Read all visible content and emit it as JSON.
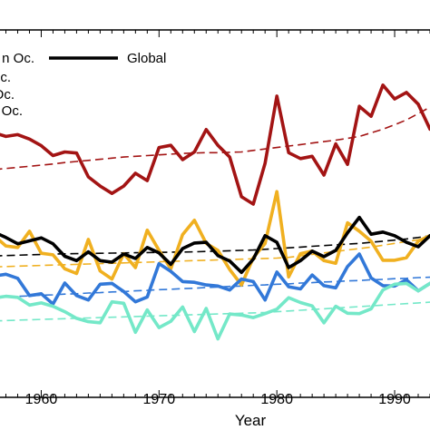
{
  "chart_data": {
    "type": "line",
    "xlabel": "Year",
    "ylabel": "",
    "xlim": [
      1956.5,
      1993.0
    ],
    "ylim": [
      0,
      100
    ],
    "x_ticks": [
      1960,
      1970,
      1980,
      1990
    ],
    "grid": false,
    "legend_position": "top-left",
    "x": [
      1956,
      1957,
      1958,
      1959,
      1960,
      1961,
      1962,
      1963,
      1964,
      1965,
      1966,
      1967,
      1968,
      1969,
      1970,
      1971,
      1972,
      1973,
      1974,
      1975,
      1976,
      1977,
      1978,
      1979,
      1980,
      1981,
      1982,
      1983,
      1984,
      1985,
      1986,
      1987,
      1988,
      1989,
      1990,
      1991,
      1992,
      1993
    ],
    "series": [
      {
        "name": "... Ocean Oc.",
        "color": "#a31414",
        "values": [
          72,
          71,
          71.5,
          70.3,
          68.5,
          65.8,
          66.8,
          66.5,
          60,
          57.5,
          55.5,
          57.5,
          61,
          59,
          68,
          68.6,
          64.7,
          66.8,
          72.9,
          68.6,
          65.4,
          54.6,
          52.6,
          63.7,
          82,
          66.6,
          65,
          65.6,
          60.5,
          69,
          63.4,
          79.2,
          76.5,
          85,
          81.2,
          83,
          79.8,
          73
        ]
      },
      {
        "name": "... Oc.",
        "color": "#f0b020",
        "values": [
          44,
          41.2,
          40.8,
          45.2,
          39.2,
          38.8,
          35,
          33.7,
          43,
          34.4,
          32.2,
          39.1,
          35.3,
          45.5,
          40,
          35,
          44.3,
          48.2,
          41.9,
          40,
          34.8,
          30.6,
          38,
          41.9,
          56,
          32.8,
          39.1,
          39.8,
          37.2,
          36.5,
          47.5,
          45.2,
          42.5,
          37.3,
          37.3,
          38,
          42.5,
          44
        ]
      },
      {
        "name": "... Oc.",
        "color": "#3278d8",
        "values": [
          33,
          33.5,
          32.4,
          27.7,
          28.2,
          25.4,
          31.1,
          27.7,
          26.5,
          30.8,
          31,
          28.8,
          26,
          27.3,
          36.4,
          34.3,
          31.5,
          31.3,
          30.6,
          30.3,
          29.2,
          32.2,
          31.5,
          26.5,
          34.1,
          30.1,
          29.5,
          33.3,
          30.4,
          29.8,
          35.6,
          39,
          32.5,
          30.4,
          30.3,
          32,
          29,
          31
        ]
      },
      {
        "name": "Global",
        "color": "#000000",
        "values": [
          45,
          43.5,
          41.8,
          42.6,
          43.4,
          41.8,
          38.4,
          37.2,
          39.6,
          37.2,
          36.8,
          39,
          37.8,
          40.8,
          39.3,
          36.2,
          40.5,
          42,
          42.2,
          38.6,
          37.1,
          34,
          37.6,
          44,
          42.2,
          35.3,
          37.2,
          39.8,
          38.3,
          40,
          44.8,
          49,
          44.4,
          45,
          44,
          42.2,
          41,
          44
        ]
      },
      {
        "name": "... Oc.",
        "color": "#74e8c8",
        "values": [
          27,
          27.5,
          27.2,
          25.1,
          25.7,
          24.8,
          23.3,
          21.5,
          20.6,
          20.3,
          26,
          25.6,
          17.7,
          23.8,
          19,
          20.7,
          24.6,
          17.9,
          24.2,
          15.9,
          22.7,
          22.4,
          21.7,
          22.8,
          24,
          27.1,
          25.8,
          24.9,
          20.3,
          24.8,
          22.9,
          22.8,
          24.1,
          29.2,
          30.8,
          31,
          29,
          31
        ]
      }
    ],
    "trend_series": [
      {
        "color": "#a31414",
        "values": [
          62,
          62.3,
          62.6,
          62.9,
          63.2,
          63.5,
          63.9,
          64.2,
          64.5,
          64.8,
          65.1,
          65.4,
          65.6,
          65.8,
          66,
          66.2,
          66.4,
          66.5,
          66.6,
          66.6,
          66.7,
          66.8,
          67.2,
          67.6,
          68,
          68.4,
          68.8,
          69.2,
          69.6,
          70,
          70.5,
          71,
          72,
          73,
          74.2,
          75.5,
          77.2,
          79
        ]
      },
      {
        "color": "#f0b020",
        "values": [
          35.5,
          35.6,
          35.7,
          35.8,
          35.9,
          36,
          36.1,
          36.2,
          36.3,
          36.4,
          36.5,
          36.6,
          36.7,
          36.8,
          36.9,
          37,
          37.1,
          37.2,
          37.3,
          37.4,
          37.5,
          37.6,
          37.7,
          37.8,
          37.9,
          38.1,
          38.5,
          38.9,
          39.3,
          39.7,
          40.1,
          40.5,
          40.9,
          41.4,
          41.9,
          42.4,
          42.9,
          43.5
        ]
      },
      {
        "color": "#3278d8",
        "values": [
          27.2,
          27.3,
          27.5,
          27.6,
          27.8,
          27.9,
          28.1,
          28.2,
          28.4,
          28.5,
          28.7,
          28.8,
          29,
          29.1,
          29.3,
          29.4,
          29.6,
          29.7,
          29.9,
          30,
          30.2,
          30.3,
          30.5,
          30.6,
          30.8,
          30.9,
          31.1,
          31.2,
          31.4,
          31.5,
          31.7,
          31.8,
          32,
          32.1,
          32.3,
          32.4,
          32.6,
          32.7
        ]
      },
      {
        "color": "#000000",
        "values": [
          38.5,
          38.6,
          38.7,
          38.8,
          38.9,
          39,
          39.05,
          39.1,
          39.15,
          39.2,
          39.25,
          39.3,
          39.35,
          39.4,
          39.45,
          39.5,
          39.55,
          39.6,
          39.7,
          39.8,
          39.9,
          40,
          40.1,
          40.3,
          40.5,
          40.7,
          40.9,
          41.1,
          41.3,
          41.5,
          41.7,
          41.9,
          42.2,
          42.5,
          42.8,
          43.1,
          43.5,
          44
        ]
      },
      {
        "color": "#74e8c8",
        "values": [
          20.8,
          20.9,
          21,
          21.1,
          21.2,
          21.3,
          21.4,
          21.5,
          21.6,
          21.7,
          21.8,
          21.9,
          22,
          22.1,
          22.2,
          22.3,
          22.4,
          22.5,
          22.6,
          22.7,
          22.8,
          22.9,
          23,
          23.1,
          23.3,
          23.5,
          23.7,
          23.9,
          24.1,
          24.3,
          24.5,
          24.7,
          24.9,
          25.1,
          25.3,
          25.5,
          25.7,
          25.9
        ]
      }
    ],
    "legend": [
      {
        "label": "n Oc.",
        "color": "#a31414"
      },
      {
        "label": "c.",
        "color": "#f0b020"
      },
      {
        "label": "Oc.",
        "color": "#3278d8"
      },
      {
        "label": "Oc.",
        "color": "#74e8c8"
      },
      {
        "label": "Global",
        "color": "#000000"
      }
    ]
  }
}
